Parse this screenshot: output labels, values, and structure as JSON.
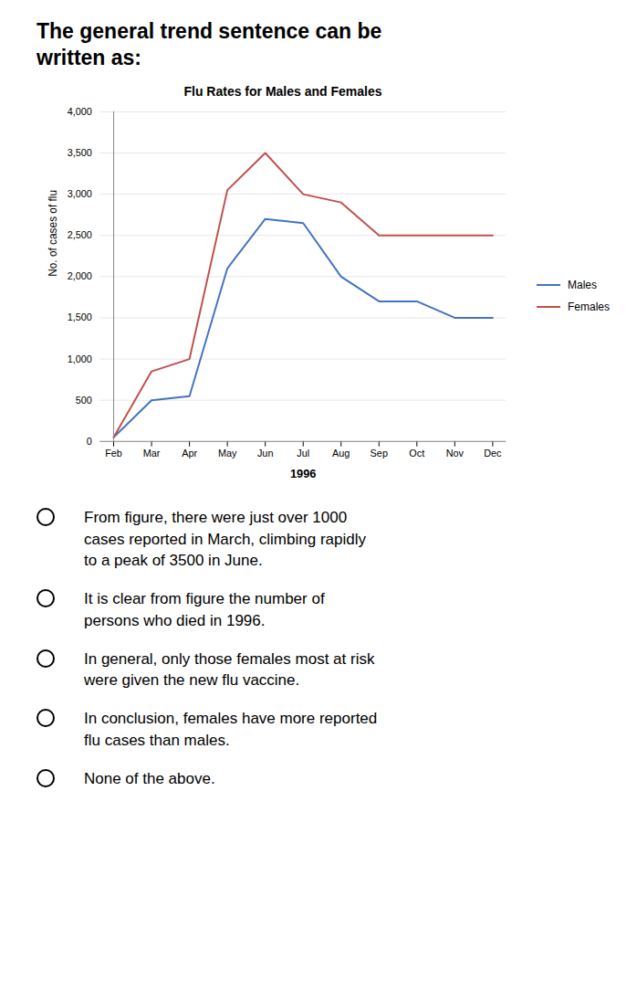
{
  "title": "The general trend sentence can be written as:",
  "annotations": [
    "From figure, there were just over 1000\ncases reported in March, climbing rapidly\nto a peak of 3500 in June.",
    "It is clear from figure the number of\npersons who died in 1996.",
    "In general, only those females most at risk\nwere given the new flu vaccine.",
    "In conclusion, females have more reported\nflu cases than males.",
    "None of the above."
  ],
  "chart_data": {
    "type": "line",
    "title": "Flu Rates for Males and Females",
    "xlabel": "1996",
    "ylabel": "No. of cases of flu",
    "categories": [
      "Feb",
      "Mar",
      "Apr",
      "May",
      "Jun",
      "Jul",
      "Aug",
      "Sep",
      "Oct",
      "Nov",
      "Dec"
    ],
    "series": [
      {
        "name": "Males",
        "color": "#4472C4",
        "values": [
          50,
          500,
          550,
          2100,
          2700,
          2650,
          2000,
          1700,
          1700,
          1500,
          1500
        ]
      },
      {
        "name": "Females",
        "color": "#C0504D",
        "values": [
          50,
          850,
          1000,
          3050,
          3500,
          3000,
          2900,
          2500,
          2500,
          2500,
          2500
        ]
      }
    ],
    "ylim": [
      0,
      4000
    ],
    "yticks": [
      0,
      500,
      1000,
      1500,
      2000,
      2500,
      3000,
      3500,
      4000
    ],
    "grid": true,
    "legend": "right"
  }
}
